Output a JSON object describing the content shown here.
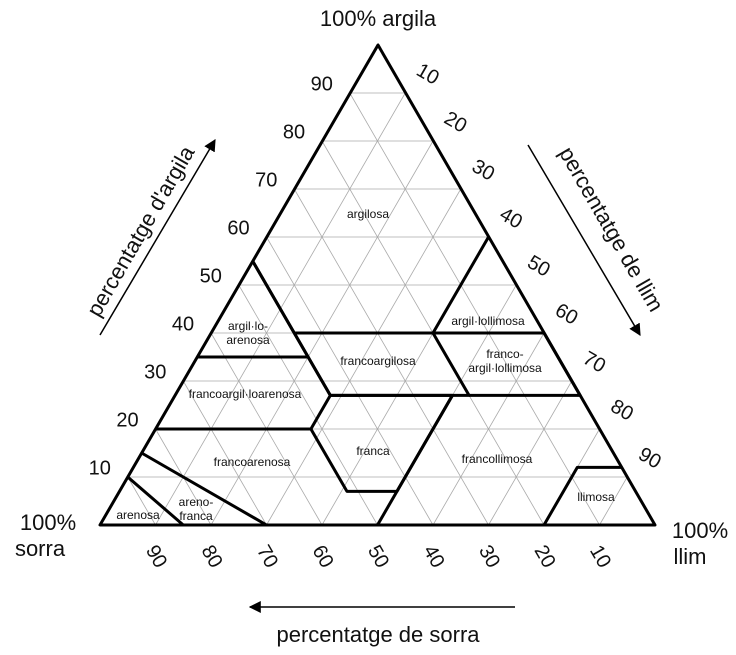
{
  "corners": {
    "top": "100% argila",
    "left": [
      "100%",
      "sorra"
    ],
    "right": [
      "100%",
      "llim"
    ]
  },
  "axes": {
    "clay": {
      "title": "percentatge d'argila",
      "ticks": [
        90,
        80,
        70,
        60,
        50,
        40,
        30,
        20,
        10
      ]
    },
    "silt": {
      "title": "percentatge de llim",
      "ticks": [
        10,
        20,
        30,
        40,
        50,
        60,
        70,
        80,
        90
      ]
    },
    "sand": {
      "title": "percentatge de sorra",
      "ticks": [
        90,
        80,
        70,
        60,
        50,
        40,
        30,
        20,
        10
      ]
    }
  },
  "regions": [
    {
      "lines": [
        "argilosa"
      ]
    },
    {
      "lines": [
        "argil·lollimosa"
      ]
    },
    {
      "lines": [
        "argil·lo-",
        "arenosa"
      ]
    },
    {
      "lines": [
        "francoargilosa"
      ]
    },
    {
      "lines": [
        "franco-",
        "argil·lollimosa"
      ]
    },
    {
      "lines": [
        "francoargil·loarenosa"
      ]
    },
    {
      "lines": [
        "francoarenosa"
      ]
    },
    {
      "lines": [
        "franca"
      ]
    },
    {
      "lines": [
        "francollimosa"
      ]
    },
    {
      "lines": [
        "llimosa"
      ]
    },
    {
      "lines": [
        "arenosa"
      ]
    },
    {
      "lines": [
        "areno-",
        "franca"
      ]
    }
  ]
}
